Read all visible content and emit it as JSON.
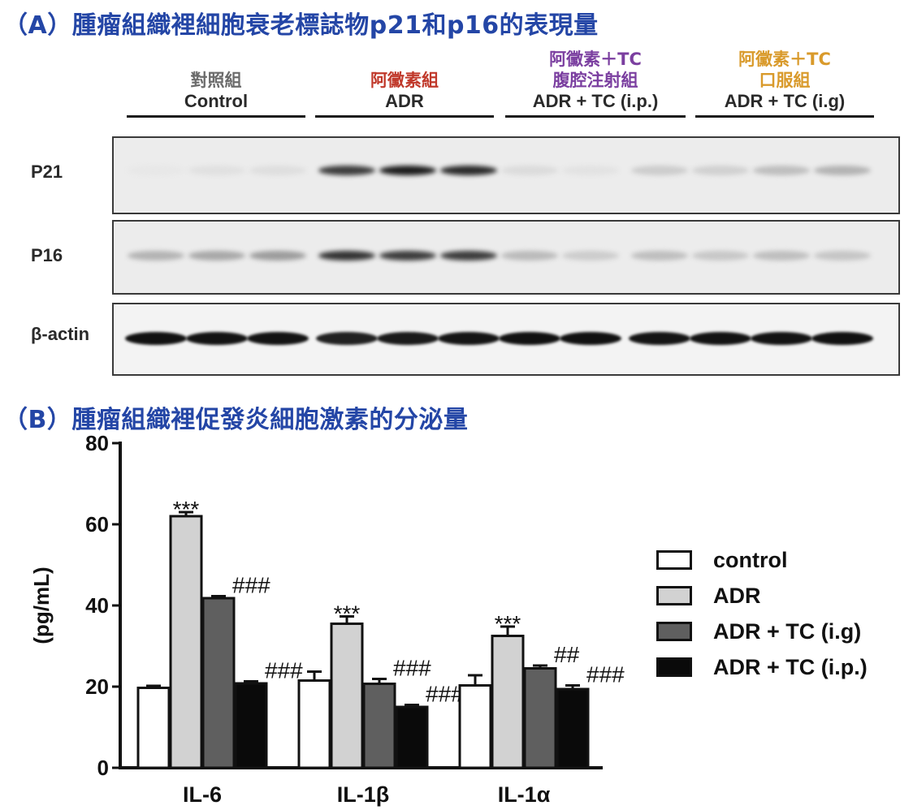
{
  "panel_a": {
    "title": "（A）腫瘤組織裡細胞衰老標誌物p21和p16的表現量",
    "groups": [
      {
        "zh1": "",
        "zh2": "對照組",
        "en": "Control",
        "color": "#6b6b6b"
      },
      {
        "zh1": "",
        "zh2": "阿黴素組",
        "en": "ADR",
        "color": "#c0392b"
      },
      {
        "zh1": "阿黴素＋TC",
        "zh2": "腹腔注射組",
        "en": "ADR + TC (i.p.)",
        "color": "#7b3fa0"
      },
      {
        "zh1": "阿黴素＋TC",
        "zh2": "口服組",
        "en": "ADR + TC (i.g)",
        "color": "#d99a2b"
      }
    ],
    "blots": [
      {
        "label": "P21",
        "lanes": [
          0.02,
          0.05,
          0.06,
          0.78,
          0.92,
          0.86,
          0.07,
          0.04,
          0.14,
          0.12,
          0.2,
          0.25
        ]
      },
      {
        "label": "P16",
        "lanes": [
          0.25,
          0.3,
          0.35,
          0.82,
          0.78,
          0.78,
          0.22,
          0.14,
          0.2,
          0.16,
          0.2,
          0.17
        ]
      },
      {
        "label": "β-actin",
        "lanes": [
          0.97,
          0.96,
          0.96,
          0.9,
          0.93,
          0.95,
          0.97,
          0.97,
          0.95,
          0.96,
          0.96,
          0.97
        ]
      }
    ]
  },
  "panel_b": {
    "title": "（B）腫瘤組織裡促發炎細胞激素的分泌量"
  },
  "chart_data": {
    "type": "bar",
    "ylabel": "(pg/mL)",
    "ylim": [
      0,
      80
    ],
    "yticks": [
      "0",
      "20",
      "40",
      "60",
      "80"
    ],
    "categories": [
      "IL-6",
      "IL-1β",
      "IL-1α"
    ],
    "series": [
      {
        "name": "control",
        "color": "#ffffff",
        "values": [
          19.7,
          21.5,
          20.3
        ],
        "errors": [
          0.5,
          2.2,
          2.5
        ],
        "marks": [
          "",
          "",
          ""
        ]
      },
      {
        "name": "ADR",
        "color": "#d2d2d2",
        "values": [
          62,
          35.5,
          32.5
        ],
        "errors": [
          1,
          1.8,
          2.3
        ],
        "marks": [
          "***",
          "***",
          "***"
        ]
      },
      {
        "name": "ADR + TC (i.g)",
        "color": "#5f5f5f",
        "values": [
          41.8,
          20.7,
          24.5
        ],
        "errors": [
          0.5,
          1.2,
          0.7
        ],
        "marks": [
          "###",
          "###",
          "##"
        ]
      },
      {
        "name": "ADR + TC (i.p.)",
        "color": "#0a0a0a",
        "values": [
          20.8,
          15,
          19.4
        ],
        "errors": [
          0.5,
          0.5,
          0.9
        ],
        "marks": [
          "###",
          "###",
          "###"
        ]
      }
    ],
    "legend_position": "right"
  }
}
